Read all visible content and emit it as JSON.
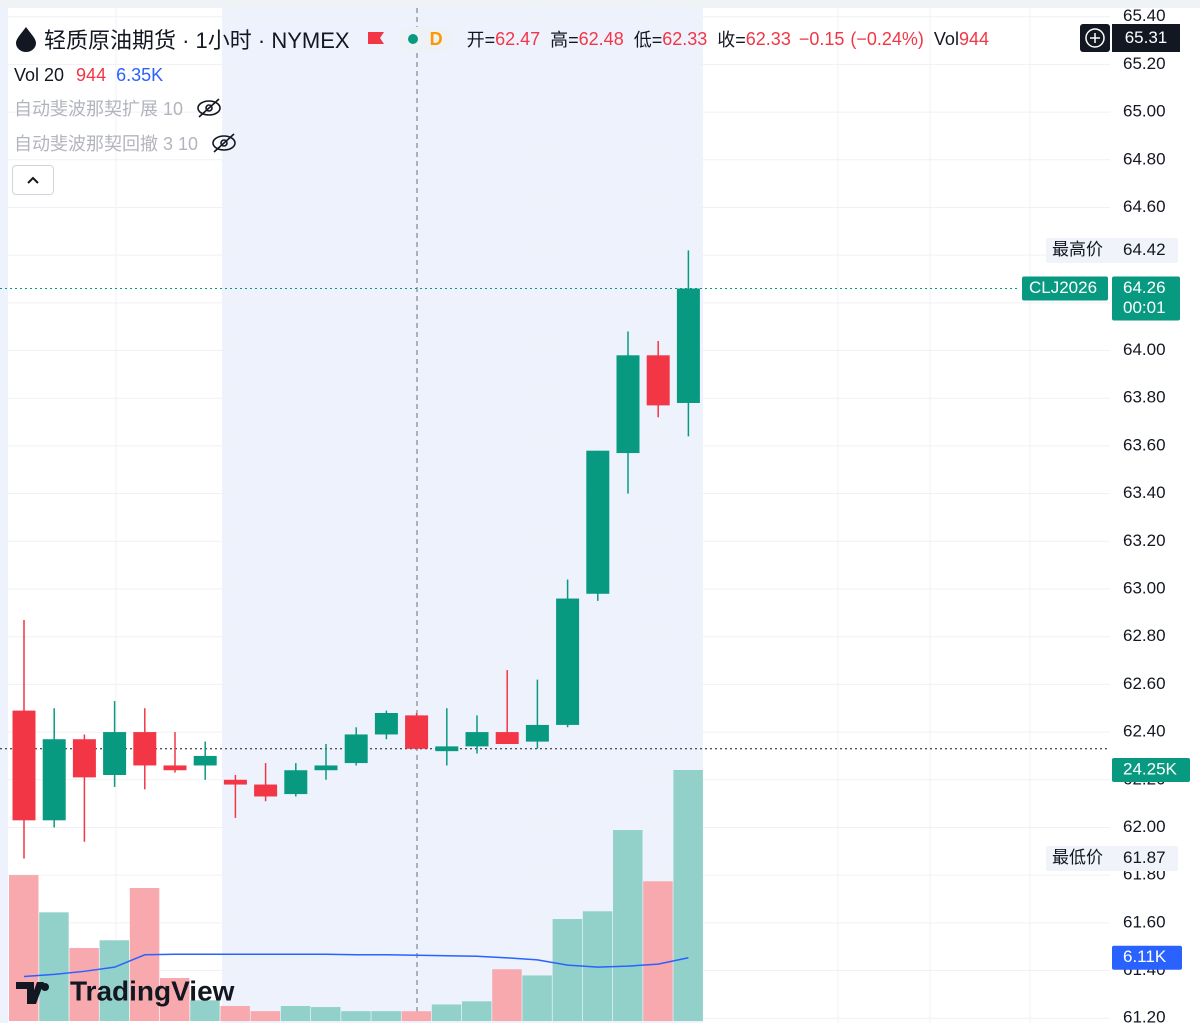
{
  "header": {
    "symbol_title": "轻质原油期货 · 1小时 · NYMEX",
    "badge": "D",
    "open_label": "开=",
    "open": 62.47,
    "high_label": "高=",
    "high": 62.48,
    "low_label": "低=",
    "low": 62.33,
    "close_label": "收=",
    "close": 62.33,
    "change": {
      "value": -0.15,
      "label": "−0.15"
    },
    "change_pct": {
      "value": -0.24,
      "label": "(−0.24%)"
    },
    "vol_label": "Vol",
    "vol": 944,
    "cursor_price": 65.31
  },
  "volume_legend": {
    "title": "Vol 20",
    "volume": 944,
    "ma": {
      "value": 6350,
      "label": "6.35K"
    }
  },
  "indicators": [
    "自动斐波那契扩展 10",
    "自动斐波那契回撤 3 10"
  ],
  "watermark": "TradingView",
  "chart_data": {
    "type": "candlestick",
    "open": [
      62.49,
      62.03,
      62.37,
      62.22,
      62.4,
      62.26,
      62.26,
      62.2,
      62.18,
      62.14,
      62.24,
      62.27,
      62.39,
      62.47,
      62.32,
      62.34,
      62.4,
      62.36,
      62.43,
      62.98,
      63.57,
      63.98,
      63.78
    ],
    "high": [
      62.87,
      62.5,
      62.39,
      62.53,
      62.5,
      62.4,
      62.36,
      62.22,
      62.27,
      62.27,
      62.35,
      62.42,
      62.49,
      62.48,
      62.5,
      62.47,
      62.66,
      62.62,
      63.04,
      63.58,
      64.08,
      64.04,
      64.42
    ],
    "low": [
      61.87,
      62.0,
      61.94,
      62.17,
      62.16,
      62.23,
      62.2,
      62.04,
      62.11,
      62.13,
      62.2,
      62.26,
      62.37,
      62.33,
      62.26,
      62.31,
      62.35,
      62.33,
      62.42,
      62.95,
      63.4,
      63.72,
      63.64
    ],
    "close": [
      62.03,
      62.37,
      62.21,
      62.4,
      62.26,
      62.24,
      62.3,
      62.18,
      62.13,
      62.24,
      62.26,
      62.39,
      62.48,
      62.33,
      62.34,
      62.4,
      62.35,
      62.43,
      62.96,
      63.58,
      63.98,
      63.77,
      64.26
    ],
    "volume": [
      14100,
      10500,
      7050,
      7800,
      12850,
      4150,
      2000,
      1450,
      950,
      1450,
      1350,
      950,
      950,
      944,
      1600,
      1900,
      5000,
      4400,
      9850,
      10600,
      18450,
      13500,
      24250
    ],
    "volume_ma": [
      4300,
      4500,
      4800,
      5200,
      6400,
      6450,
      6450,
      6450,
      6450,
      6450,
      6450,
      6400,
      6400,
      6350,
      6300,
      6250,
      6100,
      5900,
      5400,
      5200,
      5300,
      5500,
      6110
    ],
    "up_color": "#089981",
    "down_color": "#f23645",
    "up_volume_color": "#92d1c9",
    "down_volume_color": "#f7a9ae",
    "ma_color": "#2962ff",
    "ylim": [
      61.18,
      65.47
    ],
    "yticks": [
      {
        "value": 61.2,
        "label": "61.20"
      },
      {
        "value": 61.4,
        "label": "61.40"
      },
      {
        "value": 61.6,
        "label": "61.60"
      },
      {
        "value": 61.8,
        "label": "61.80"
      },
      {
        "value": 62.0,
        "label": "62.00"
      },
      {
        "value": 62.2,
        "label": "62.20"
      },
      {
        "value": 62.4,
        "label": "62.40"
      },
      {
        "value": 62.6,
        "label": "62.60"
      },
      {
        "value": 62.8,
        "label": "62.80"
      },
      {
        "value": 63.0,
        "label": "63.00"
      },
      {
        "value": 63.2,
        "label": "63.20"
      },
      {
        "value": 63.4,
        "label": "63.40"
      },
      {
        "value": 63.6,
        "label": "63.60"
      },
      {
        "value": 63.8,
        "label": "63.80"
      },
      {
        "value": 64.0,
        "label": "64.00"
      },
      {
        "value": 64.2,
        "label": "64.20"
      },
      {
        "value": 64.4,
        "label": "64.40"
      },
      {
        "value": 64.6,
        "label": "64.60"
      },
      {
        "value": 64.8,
        "label": "64.80"
      },
      {
        "value": 65.0,
        "label": "65.00"
      },
      {
        "value": 65.2,
        "label": "65.20"
      },
      {
        "value": 65.4,
        "label": "65.40"
      }
    ],
    "grid": true,
    "price_labels": {
      "high_label": "最高价",
      "high": 64.42,
      "low_label": "最低价",
      "low": 61.87,
      "symbol": "CLJ2026",
      "last": 64.26,
      "countdown": "00:01",
      "volume_last": {
        "value": 24250,
        "label": "24.25K"
      },
      "ma_last": {
        "value": 6110,
        "label": "6.11K"
      }
    }
  }
}
